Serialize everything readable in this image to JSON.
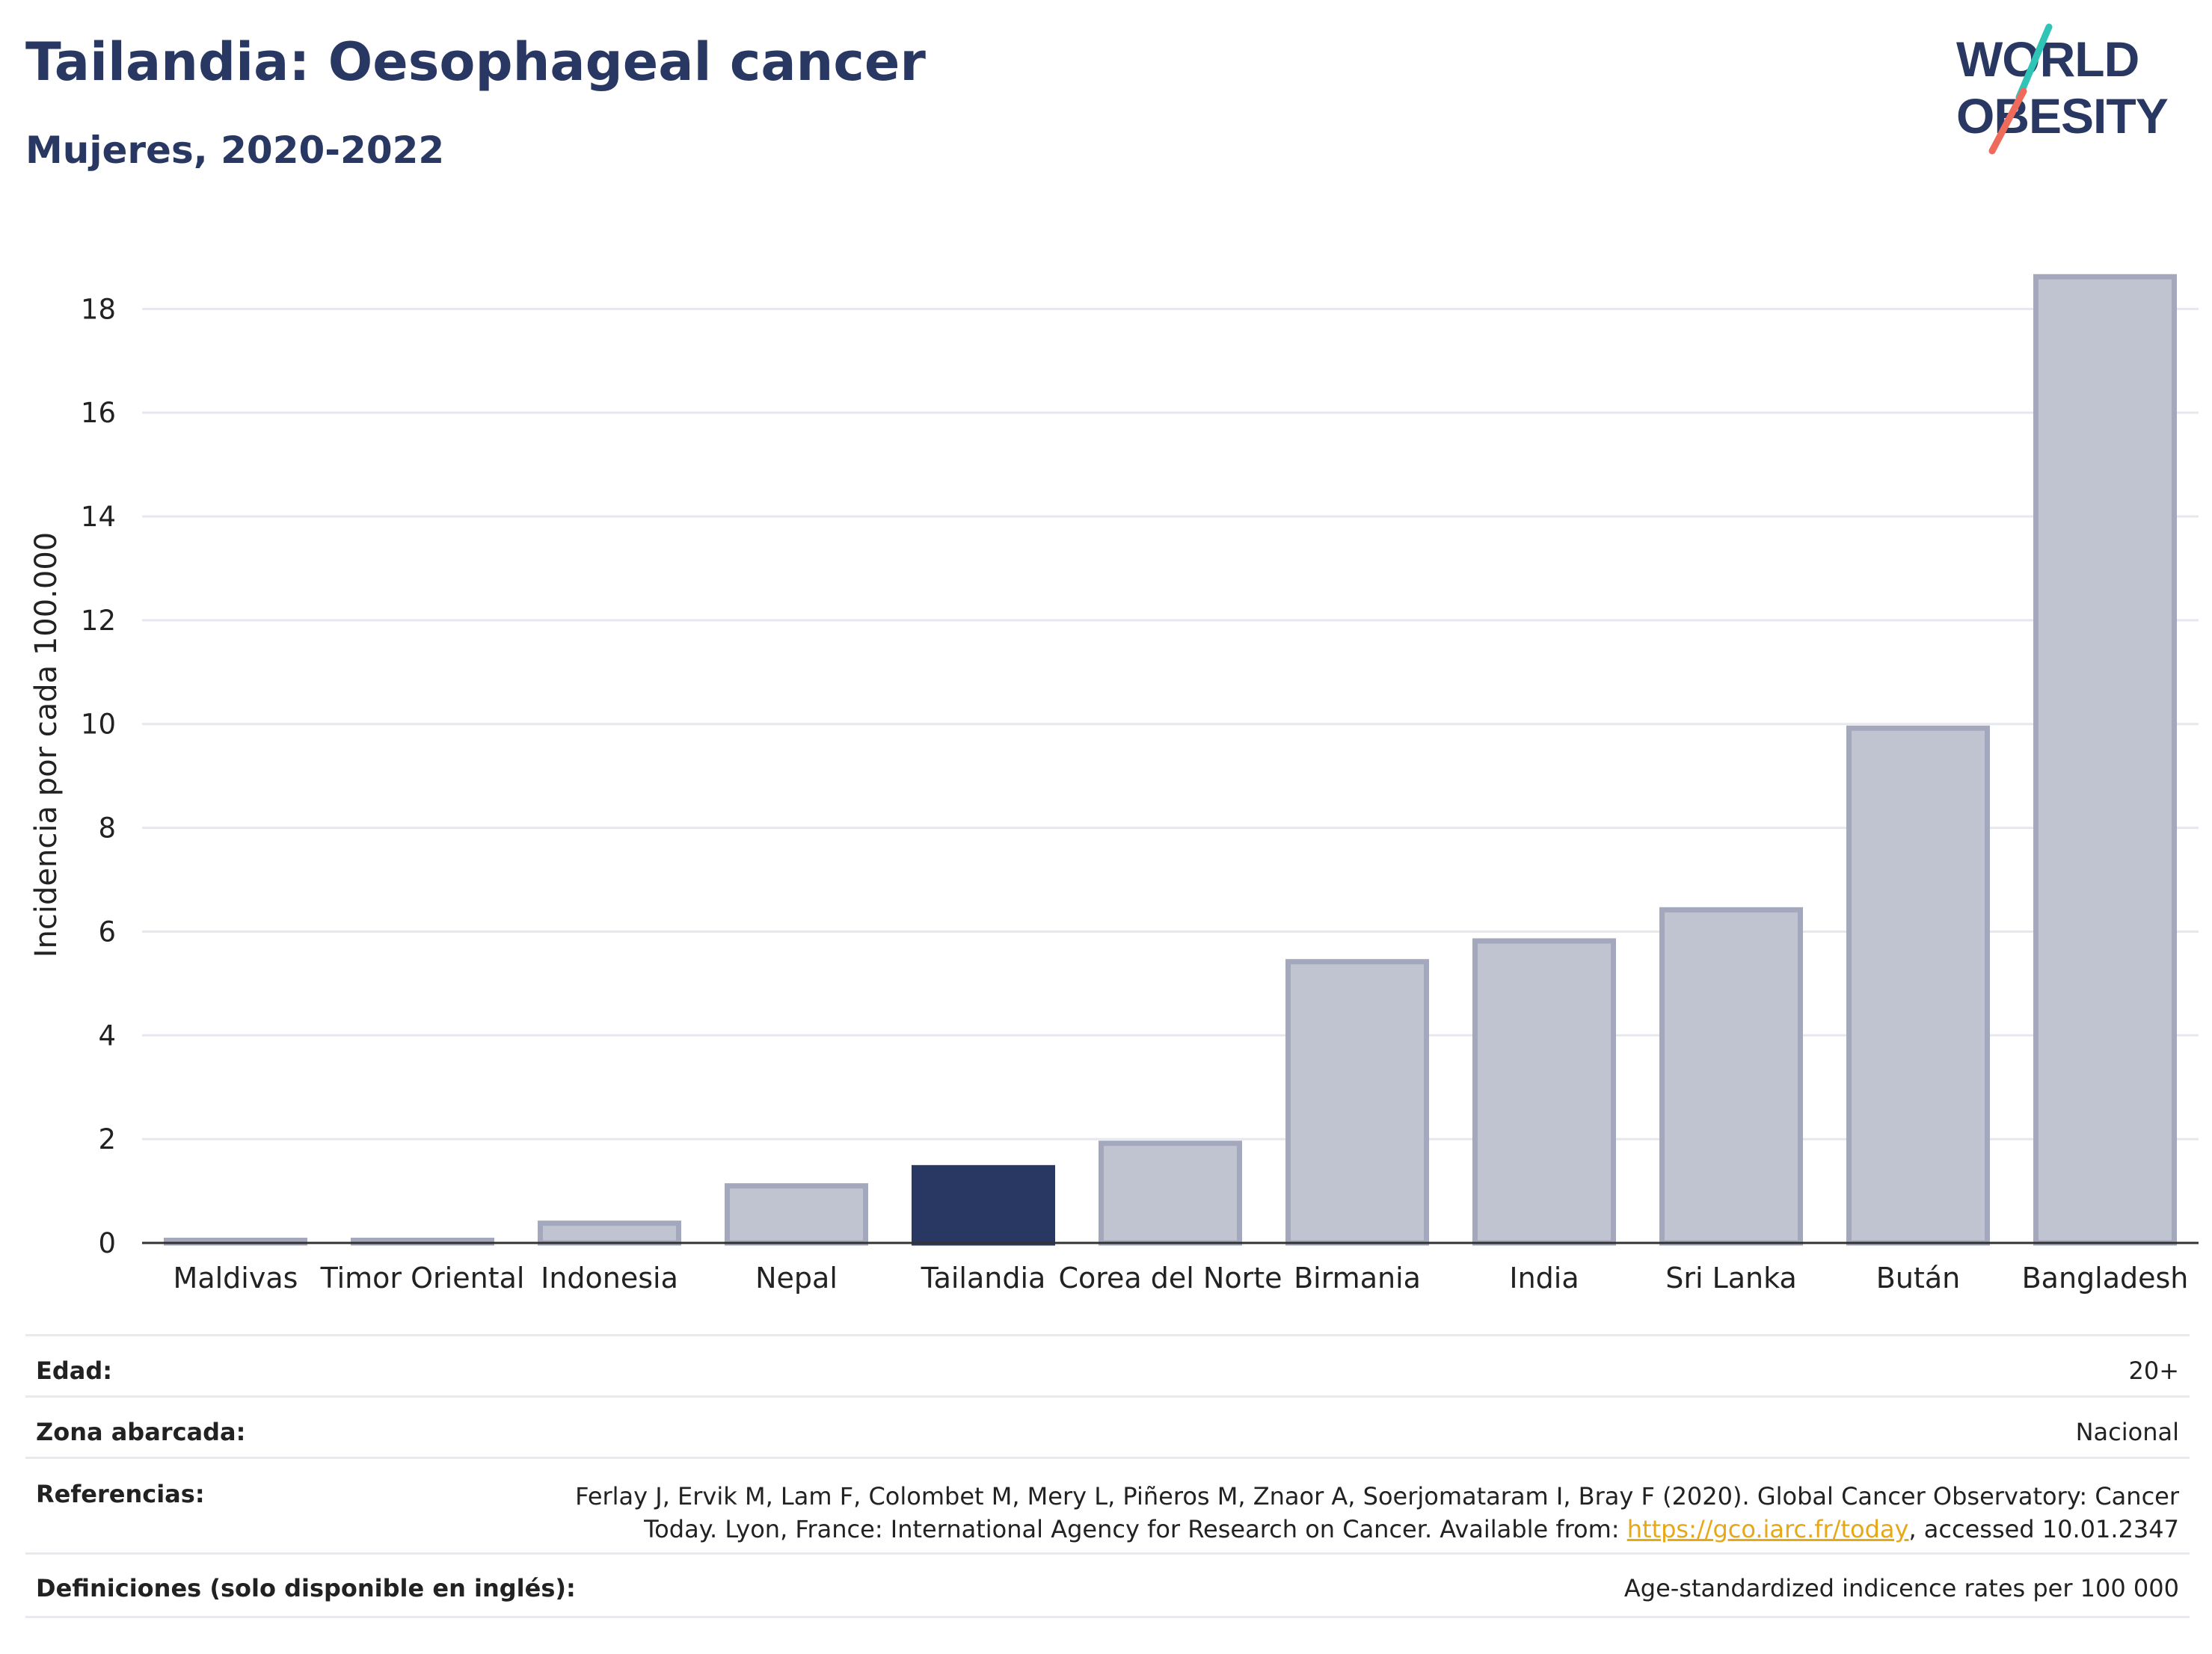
{
  "header": {
    "title": "Tailandia: Oesophageal cancer",
    "subtitle": "Mujeres, 2020-2022",
    "logo_line1": "WORLD",
    "logo_line2": "OBESITY"
  },
  "colors": {
    "highlight": "#283862",
    "bar_fill": "#c0c3d0",
    "bar_stroke": "#a3a8bd",
    "grid": "#e6e8ee",
    "text": "#222222",
    "logo_teal": "#2ec4b6",
    "logo_coral": "#ee6b5c",
    "link": "#e6a817"
  },
  "chart_data": {
    "type": "bar",
    "categories": [
      "Maldivas",
      "Timor Oriental",
      "Indonesia",
      "Nepal",
      "Tailandia",
      "Corea del Norte",
      "Birmania",
      "India",
      "Sri Lanka",
      "Bután",
      "Bangladesh"
    ],
    "values": [
      0.05,
      0.05,
      0.38,
      1.1,
      1.45,
      1.92,
      5.42,
      5.82,
      6.42,
      9.92,
      18.62
    ],
    "highlight": "Tailandia",
    "title": "",
    "xlabel": "",
    "ylabel": "Incidencia por cada 100.000",
    "ylim": [
      0,
      19.2
    ],
    "yticks": [
      0,
      2,
      4,
      6,
      8,
      10,
      12,
      14,
      16,
      18
    ],
    "grid": true
  },
  "info": [
    {
      "key": "Edad:",
      "value": "20+"
    },
    {
      "key": "Zona abarcada:",
      "value": "Nacional"
    },
    {
      "key": "Referencias:",
      "value_line1": "Ferlay J, Ervik M, Lam F, Colombet M, Mery L, Piñeros M, Znaor A, Soerjomataram I, Bray F (2020). Global Cancer Observatory: Cancer",
      "value_line2_pre": "Today. Lyon, France: International Agency for Research on Cancer. Available from: ",
      "link": "https://gco.iarc.fr/today",
      "value_line2_post": ", accessed 10.01.2347"
    },
    {
      "key": "Definiciones (solo disponible en inglés):",
      "value": "Age-standardized indicence rates per 100 000"
    }
  ]
}
